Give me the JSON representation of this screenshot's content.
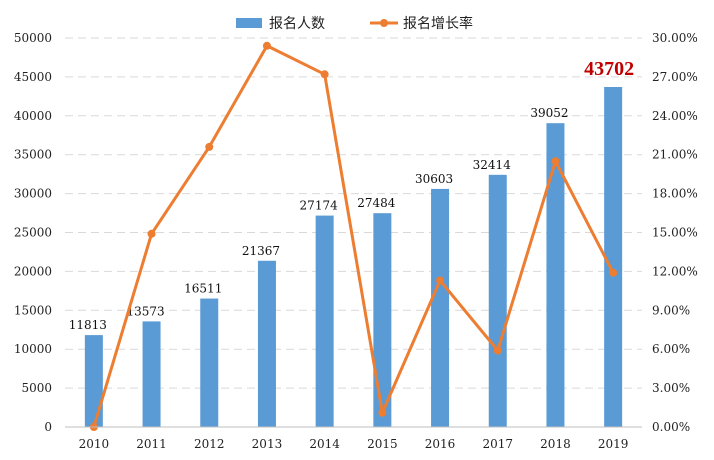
{
  "chart_data": {
    "type": "bar",
    "categories": [
      "2010",
      "2011",
      "2012",
      "2013",
      "2014",
      "2015",
      "2016",
      "2017",
      "2018",
      "2019"
    ],
    "series": [
      {
        "name": "报名人数",
        "type": "bar",
        "axis": "left",
        "color": "#5B9BD5",
        "values": [
          11813,
          13573,
          16511,
          21367,
          27174,
          27484,
          30603,
          32414,
          39052,
          43702
        ],
        "labels": [
          "11813",
          "13573",
          "16511",
          "21367",
          "27174",
          "27484",
          "30603",
          "32414",
          "39052",
          "43702"
        ]
      },
      {
        "name": "报名增长率",
        "type": "line",
        "axis": "right",
        "color": "#ED7D31",
        "values": [
          0.0,
          14.9,
          21.6,
          29.4,
          27.2,
          1.1,
          11.3,
          5.9,
          20.5,
          11.9
        ]
      }
    ],
    "left_axis": {
      "ylim": [
        0,
        50000
      ],
      "ticks": [
        "0",
        "5000",
        "10000",
        "15000",
        "20000",
        "25000",
        "30000",
        "35000",
        "40000",
        "45000",
        "50000"
      ]
    },
    "right_axis": {
      "ylim": [
        0,
        30
      ],
      "ticks": [
        "0.00%",
        "3.00%",
        "6.00%",
        "9.00%",
        "12.00%",
        "15.00%",
        "18.00%",
        "21.00%",
        "24.00%",
        "27.00%",
        "30.00%"
      ]
    },
    "highlight": {
      "index": 9,
      "label": "43702",
      "color": "#C00000"
    },
    "grid": true,
    "legend_position": "top-center"
  }
}
